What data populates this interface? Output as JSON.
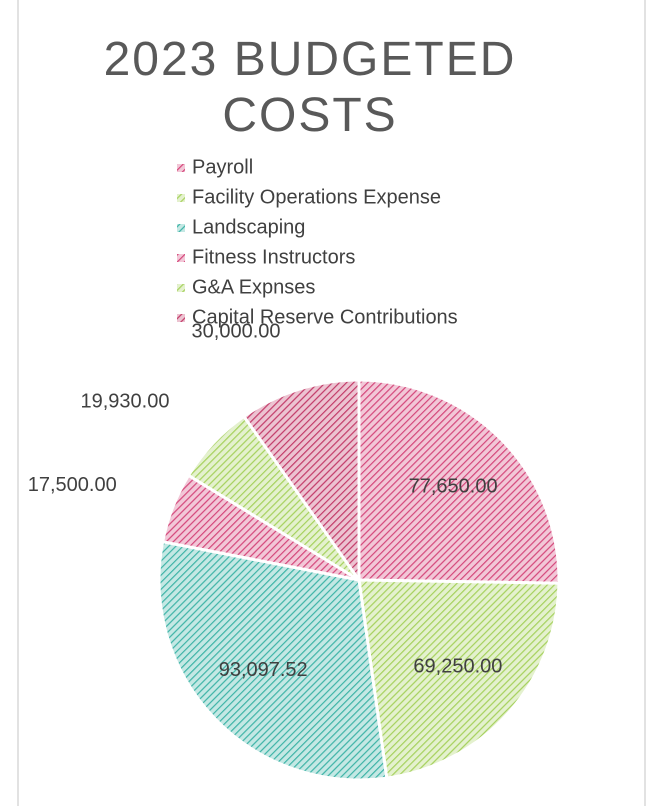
{
  "chart_data": {
    "type": "pie",
    "title": "2023 BUDGETED COSTS",
    "categories": [
      "Payroll",
      "Facility Operations Expense",
      "Landscaping",
      "Fitness Instructors",
      "G&A Expnses",
      "Capital Reserve Contributions"
    ],
    "values": [
      77650,
      69250,
      93097.52,
      17500,
      19930,
      30000
    ],
    "value_labels": [
      "77,650.00",
      "69,250.00",
      "93,097.52",
      "17,500.00",
      "19,930.00",
      "30,000.00"
    ],
    "colors": [
      "#d4467a",
      "#a5d15c",
      "#3db3a6",
      "#d4467a",
      "#a5d15c",
      "#c23a68"
    ],
    "legend": "top"
  }
}
